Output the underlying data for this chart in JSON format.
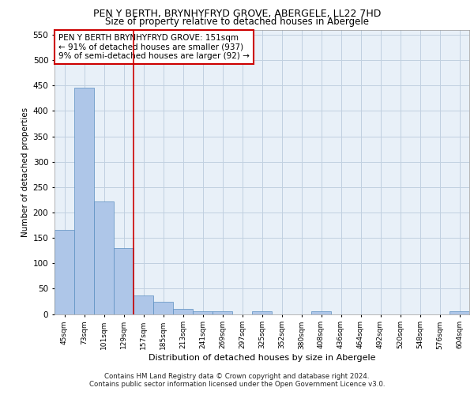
{
  "title_line1": "PEN Y BERTH, BRYNHYFRYD GROVE, ABERGELE, LL22 7HD",
  "title_line2": "Size of property relative to detached houses in Abergele",
  "xlabel": "Distribution of detached houses by size in Abergele",
  "ylabel": "Number of detached properties",
  "categories": [
    "45sqm",
    "73sqm",
    "101sqm",
    "129sqm",
    "157sqm",
    "185sqm",
    "213sqm",
    "241sqm",
    "269sqm",
    "297sqm",
    "325sqm",
    "352sqm",
    "380sqm",
    "408sqm",
    "436sqm",
    "464sqm",
    "492sqm",
    "520sqm",
    "548sqm",
    "576sqm",
    "604sqm"
  ],
  "values": [
    165,
    445,
    222,
    130,
    37,
    24,
    10,
    6,
    5,
    0,
    5,
    0,
    0,
    5,
    0,
    0,
    0,
    0,
    0,
    0,
    5
  ],
  "bar_color": "#aec6e8",
  "bar_edge_color": "#5a8fc0",
  "grid_color": "#c0d0e0",
  "background_color": "#e8f0f8",
  "red_line_x": 3.5,
  "annotation_text": "PEN Y BERTH BRYNHYFRYD GROVE: 151sqm\n← 91% of detached houses are smaller (937)\n9% of semi-detached houses are larger (92) →",
  "annotation_box_color": "#ffffff",
  "annotation_box_edge": "#cc0000",
  "red_line_color": "#cc0000",
  "ylim": [
    0,
    560
  ],
  "yticks": [
    0,
    50,
    100,
    150,
    200,
    250,
    300,
    350,
    400,
    450,
    500,
    550
  ],
  "footer": "Contains HM Land Registry data © Crown copyright and database right 2024.\nContains public sector information licensed under the Open Government Licence v3.0."
}
